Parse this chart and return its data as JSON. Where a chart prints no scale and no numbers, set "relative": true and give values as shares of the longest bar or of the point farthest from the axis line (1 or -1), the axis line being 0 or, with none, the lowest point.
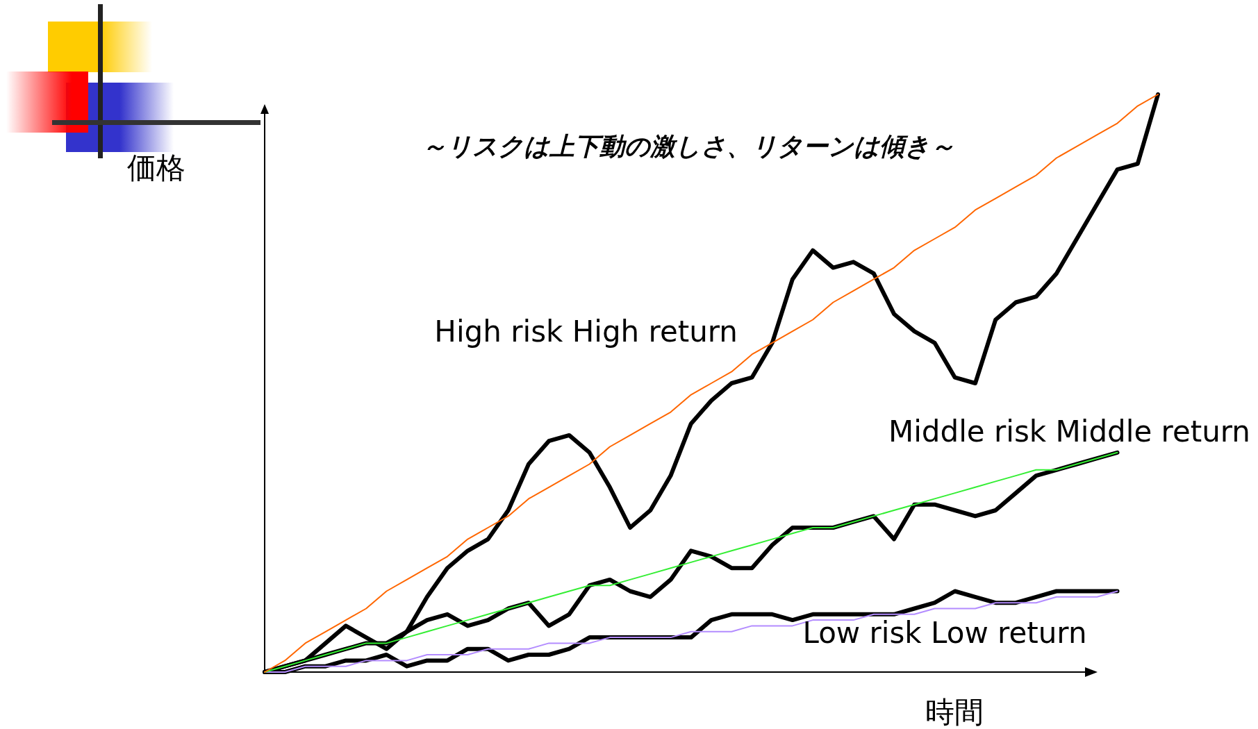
{
  "chart_data": {
    "type": "line",
    "relative": true,
    "subtitle": "～リスクは上下動の激しさ、リターンは傾き～",
    "xlabel": "時間",
    "ylabel": "価格",
    "categories": [
      null,
      null,
      null,
      null,
      null,
      null,
      null,
      null,
      null,
      null,
      null,
      null,
      null,
      null,
      null,
      null,
      null,
      null,
      null,
      null,
      null,
      null,
      null,
      null,
      null,
      null,
      null,
      null,
      null,
      null,
      null,
      null,
      null,
      null,
      null,
      null,
      null,
      null,
      null,
      null,
      null,
      null,
      null,
      null,
      null
    ],
    "series": [
      {
        "name": "High risk High return",
        "color": "#000000",
        "values": [
          0,
          0.01,
          0.02,
          0.03,
          0.04,
          0.05,
          0.05,
          0.07,
          0.13,
          0.18,
          0.21,
          0.23,
          0.28,
          0.36,
          0.4,
          0.41,
          0.38,
          0.32,
          0.25,
          0.28,
          0.34,
          0.43,
          0.47,
          0.5,
          0.51,
          0.57,
          0.68,
          0.73,
          0.7,
          0.71,
          0.69,
          0.62,
          0.59,
          0.57,
          0.51,
          0.5,
          0.61,
          0.64,
          0.65,
          0.69,
          0.75,
          0.81,
          0.87,
          0.88,
          1
        ]
      },
      {
        "name": "Middle risk Middle return",
        "color": "#000000",
        "values": [
          0,
          0.01,
          0.02,
          0.05,
          0.08,
          0.06,
          0.04,
          0.07,
          0.09,
          0.1,
          0.08,
          0.09,
          0.11,
          0.12,
          0.08,
          0.1,
          0.15,
          0.16,
          0.14,
          0.13,
          0.16,
          0.21,
          0.2,
          0.18,
          0.18,
          0.22,
          0.25,
          0.25,
          0.25,
          0.26,
          0.27,
          0.23,
          0.29,
          0.29,
          0.28,
          0.27,
          0.28,
          0.31,
          0.34,
          0.35,
          0.36,
          0.37,
          0.38,
          null,
          null
        ]
      },
      {
        "name": "Low risk Low return",
        "color": "#000000",
        "values": [
          0,
          0,
          0.01,
          0.01,
          0.02,
          0.02,
          0.03,
          0.01,
          0.02,
          0.02,
          0.04,
          0.04,
          0.02,
          0.03,
          0.03,
          0.04,
          0.06,
          0.06,
          0.06,
          0.06,
          0.06,
          0.06,
          0.09,
          0.1,
          0.1,
          0.1,
          0.09,
          0.1,
          0.1,
          0.1,
          0.1,
          0.1,
          0.11,
          0.12,
          0.14,
          0.13,
          0.12,
          0.12,
          0.13,
          0.14,
          0.14,
          0.14,
          0.14,
          null,
          null
        ]
      },
      {
        "color": "#ff6600",
        "values": [
          0,
          0.02,
          0.05,
          0.07,
          0.09,
          0.11,
          0.14,
          0.16,
          0.18,
          0.2,
          0.23,
          0.25,
          0.27,
          0.3,
          0.32,
          0.34,
          0.36,
          0.39,
          0.41,
          0.43,
          0.45,
          0.48,
          0.5,
          0.52,
          0.55,
          0.57,
          0.59,
          0.61,
          0.64,
          0.66,
          0.68,
          0.7,
          0.73,
          0.75,
          0.77,
          0.8,
          0.82,
          0.84,
          0.86,
          0.89,
          0.91,
          0.93,
          0.95,
          0.98,
          1
        ]
      },
      {
        "color": "#33ee33",
        "values": [
          0,
          0.01,
          0.02,
          0.03,
          0.04,
          0.05,
          0.05,
          0.06,
          0.07,
          0.08,
          0.09,
          0.1,
          0.11,
          0.12,
          0.13,
          0.14,
          0.15,
          0.15,
          0.16,
          0.17,
          0.18,
          0.19,
          0.2,
          0.21,
          0.22,
          0.23,
          0.24,
          0.25,
          0.25,
          0.26,
          0.27,
          0.28,
          0.29,
          0.3,
          0.31,
          0.32,
          0.33,
          0.34,
          0.35,
          0.35,
          0.36,
          0.37,
          0.38,
          null,
          null
        ]
      },
      {
        "color": "#b38cff",
        "values": [
          0,
          0,
          0.01,
          0.01,
          0.01,
          0.02,
          0.02,
          0.02,
          0.03,
          0.03,
          0.03,
          0.04,
          0.04,
          0.04,
          0.05,
          0.05,
          0.05,
          0.06,
          0.06,
          0.06,
          0.06,
          0.07,
          0.07,
          0.07,
          0.08,
          0.08,
          0.08,
          0.09,
          0.09,
          0.09,
          0.1,
          0.1,
          0.1,
          0.11,
          0.11,
          0.11,
          0.12,
          0.12,
          0.12,
          0.13,
          0.13,
          0.13,
          0.14,
          null,
          null
        ]
      }
    ]
  }
}
